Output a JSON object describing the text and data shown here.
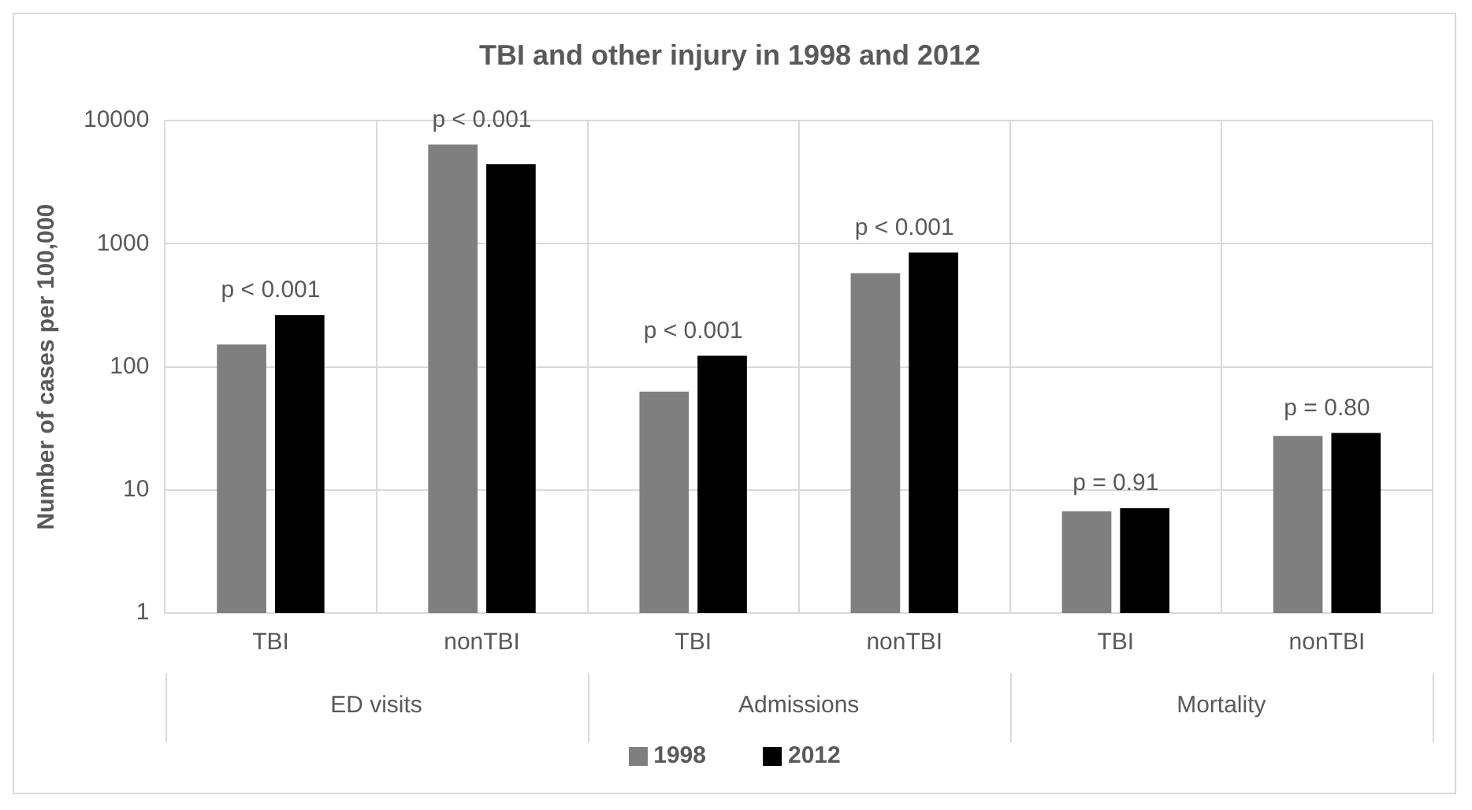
{
  "chart_data": {
    "type": "bar",
    "title": "TBI and other injury in 1998 and 2012",
    "ylabel": "Number of cases per 100,000",
    "categories": [
      "TBI",
      "nonTBI",
      "TBI",
      "nonTBI",
      "TBI",
      "nonTBI"
    ],
    "series": [
      {
        "name": "1998",
        "color": "#7f7f7f",
        "values": [
          152,
          6400,
          63,
          577,
          6.7,
          27.5
        ]
      },
      {
        "name": "2012",
        "color": "#000000",
        "values": [
          263,
          4450,
          123,
          850,
          7.1,
          29
        ]
      }
    ],
    "log": "y",
    "ylim": [
      1,
      10000
    ],
    "yticks": [
      1,
      10,
      100,
      1000,
      10000
    ],
    "grid": true,
    "legend": "bottom",
    "annotations": [
      "p < 0.001",
      "p < 0.001",
      "p < 0.001",
      "p < 0.001",
      "p = 0.91",
      "p = 0.80",
      "ED visits",
      "Admissions",
      "Mortality"
    ]
  }
}
